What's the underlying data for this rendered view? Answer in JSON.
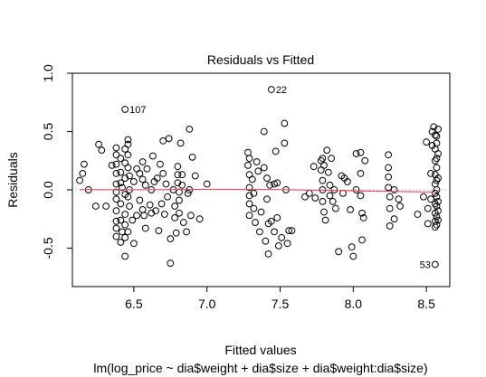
{
  "chart_data": {
    "type": "scatter",
    "title": "Residuals vs Fitted",
    "xlabel": "Fitted values",
    "subtitle": "lm(log_price ~ dia$weight + dia$size + dia$weight:dia$size)",
    "ylabel": "Residuals",
    "xlim": [
      6.08,
      8.66
    ],
    "ylim": [
      -0.83,
      1.0
    ],
    "x_ticks": [
      "6.5",
      "7.0",
      "7.5",
      "8.0",
      "8.5"
    ],
    "y_ticks": [
      "-0.5",
      "0.0",
      "0.5",
      "1.0"
    ],
    "grid": false,
    "reference_line": {
      "y": 0,
      "style": "dotted",
      "color": "#999999"
    },
    "smooth_line": {
      "color": "#df536b",
      "points": [
        [
          6.13,
          0.002
        ],
        [
          6.5,
          0.0
        ],
        [
          7.0,
          0.004
        ],
        [
          7.5,
          0.002
        ],
        [
          8.0,
          -0.008
        ],
        [
          8.57,
          -0.02
        ]
      ]
    },
    "annotations": [
      {
        "label": "107",
        "x": 6.44,
        "y": 0.69
      },
      {
        "label": "22",
        "x": 7.44,
        "y": 0.86
      },
      {
        "label": "53",
        "x": 8.56,
        "y": -0.64
      }
    ],
    "point_color": "#000000",
    "points": [
      [
        6.13,
        0.08
      ],
      [
        6.16,
        0.22
      ],
      [
        6.15,
        0.14
      ],
      [
        6.19,
        0.0
      ],
      [
        6.24,
        -0.14
      ],
      [
        6.26,
        0.39
      ],
      [
        6.28,
        0.34
      ],
      [
        6.31,
        -0.14
      ],
      [
        6.35,
        0.21
      ],
      [
        6.38,
        0.36
      ],
      [
        6.38,
        0.3
      ],
      [
        6.38,
        0.22
      ],
      [
        6.38,
        0.14
      ],
      [
        6.38,
        0.05
      ],
      [
        6.38,
        -0.02
      ],
      [
        6.38,
        -0.08
      ],
      [
        6.38,
        -0.18
      ],
      [
        6.38,
        -0.27
      ],
      [
        6.38,
        -0.33
      ],
      [
        6.38,
        -0.4
      ],
      [
        6.41,
        0.27
      ],
      [
        6.41,
        0.15
      ],
      [
        6.41,
        0.06
      ],
      [
        6.41,
        -0.12
      ],
      [
        6.41,
        -0.26
      ],
      [
        6.41,
        -0.45
      ],
      [
        6.42,
        0.02
      ],
      [
        6.42,
        -0.36
      ],
      [
        6.44,
        0.69
      ],
      [
        6.44,
        0.35
      ],
      [
        6.44,
        0.23
      ],
      [
        6.44,
        0.1
      ],
      [
        6.44,
        -0.04
      ],
      [
        6.44,
        -0.21
      ],
      [
        6.44,
        -0.3
      ],
      [
        6.44,
        -0.41
      ],
      [
        6.44,
        -0.57
      ],
      [
        6.46,
        0.43
      ],
      [
        6.46,
        0.39
      ],
      [
        6.46,
        0.3
      ],
      [
        6.46,
        0.19
      ],
      [
        6.46,
        -0.06
      ],
      [
        6.46,
        -0.36
      ],
      [
        6.47,
        0.12
      ],
      [
        6.47,
        0.0
      ],
      [
        6.47,
        -0.14
      ],
      [
        6.49,
        -0.26
      ],
      [
        6.5,
        -0.46
      ],
      [
        6.5,
        0.07
      ],
      [
        6.52,
        0.18
      ],
      [
        6.52,
        -0.22
      ],
      [
        6.54,
        0.14
      ],
      [
        6.54,
        -0.09
      ],
      [
        6.56,
        0.24
      ],
      [
        6.56,
        0.09
      ],
      [
        6.56,
        -0.17
      ],
      [
        6.57,
        -0.22
      ],
      [
        6.58,
        0.04
      ],
      [
        6.58,
        -0.33
      ],
      [
        6.59,
        0.18
      ],
      [
        6.61,
        -0.13
      ],
      [
        6.62,
        0.0
      ],
      [
        6.62,
        -0.2
      ],
      [
        6.63,
        0.29
      ],
      [
        6.64,
        0.07
      ],
      [
        6.65,
        -0.18
      ],
      [
        6.66,
        0.1
      ],
      [
        6.67,
        -0.35
      ],
      [
        6.68,
        0.22
      ],
      [
        6.69,
        -0.12
      ],
      [
        6.7,
        0.42
      ],
      [
        6.7,
        0.14
      ],
      [
        6.71,
        -0.21
      ],
      [
        6.72,
        0.05
      ],
      [
        6.73,
        -0.06
      ],
      [
        6.74,
        0.44
      ],
      [
        6.75,
        -0.63
      ],
      [
        6.75,
        -0.42
      ],
      [
        6.77,
        0.0
      ],
      [
        6.78,
        -0.14
      ],
      [
        6.78,
        -0.24
      ],
      [
        6.79,
        -0.37
      ],
      [
        6.8,
        0.2
      ],
      [
        6.8,
        0.13
      ],
      [
        6.8,
        0.06
      ],
      [
        6.81,
        -0.02
      ],
      [
        6.81,
        -0.09
      ],
      [
        6.81,
        -0.2
      ],
      [
        6.82,
        0.4
      ],
      [
        6.83,
        0.13
      ],
      [
        6.83,
        0.04
      ],
      [
        6.84,
        -0.28
      ],
      [
        6.86,
        -0.36
      ],
      [
        6.87,
        -0.03
      ],
      [
        6.88,
        0.52
      ],
      [
        6.88,
        0.0
      ],
      [
        6.89,
        -0.22
      ],
      [
        6.9,
        0.28
      ],
      [
        6.92,
        0.12
      ],
      [
        6.95,
        -0.25
      ],
      [
        7.0,
        0.05
      ],
      [
        7.28,
        0.32
      ],
      [
        7.28,
        0.21
      ],
      [
        7.29,
        0.13
      ],
      [
        7.29,
        0.02
      ],
      [
        7.29,
        -0.05
      ],
      [
        7.29,
        -0.12
      ],
      [
        7.29,
        -0.22
      ],
      [
        7.29,
        0.27
      ],
      [
        7.31,
        0.09
      ],
      [
        7.32,
        -0.03
      ],
      [
        7.32,
        -0.16
      ],
      [
        7.33,
        -0.28
      ],
      [
        7.34,
        0.24
      ],
      [
        7.35,
        0.16
      ],
      [
        7.36,
        -0.36
      ],
      [
        7.37,
        -0.19
      ],
      [
        7.39,
        0.5
      ],
      [
        7.39,
        0.19
      ],
      [
        7.4,
        -0.44
      ],
      [
        7.41,
        0.1
      ],
      [
        7.41,
        -0.08
      ],
      [
        7.42,
        -0.55
      ],
      [
        7.42,
        -0.29
      ],
      [
        7.43,
        0.04
      ],
      [
        7.44,
        0.86
      ],
      [
        7.44,
        -0.27
      ],
      [
        7.46,
        0.05
      ],
      [
        7.46,
        -0.36
      ],
      [
        7.47,
        0.33
      ],
      [
        7.48,
        0.06
      ],
      [
        7.48,
        -0.24
      ],
      [
        7.49,
        -0.48
      ],
      [
        7.51,
        -0.41
      ],
      [
        7.53,
        0.57
      ],
      [
        7.53,
        0.4
      ],
      [
        7.54,
        0.0
      ],
      [
        7.55,
        -0.46
      ],
      [
        7.56,
        -0.35
      ],
      [
        7.58,
        -0.35
      ],
      [
        7.67,
        -0.06
      ],
      [
        7.7,
        -0.03
      ],
      [
        7.73,
        0.2
      ],
      [
        7.74,
        -0.07
      ],
      [
        7.78,
        0.25
      ],
      [
        7.78,
        0.17
      ],
      [
        7.79,
        0.08
      ],
      [
        7.79,
        0.27
      ],
      [
        7.79,
        0.0
      ],
      [
        7.79,
        -0.1
      ],
      [
        7.8,
        0.21
      ],
      [
        7.8,
        -0.19
      ],
      [
        7.81,
        -0.26
      ],
      [
        7.82,
        0.34
      ],
      [
        7.83,
        0.15
      ],
      [
        7.84,
        0.04
      ],
      [
        7.84,
        -0.05
      ],
      [
        7.85,
        0.27
      ],
      [
        7.86,
        -0.1
      ],
      [
        7.87,
        0.0
      ],
      [
        7.88,
        -0.16
      ],
      [
        7.9,
        -0.53
      ],
      [
        7.92,
        0.12
      ],
      [
        7.93,
        -0.03
      ],
      [
        7.94,
        0.1
      ],
      [
        7.96,
        0.07
      ],
      [
        7.98,
        -0.17
      ],
      [
        7.99,
        -0.49
      ],
      [
        8.0,
        -0.57
      ],
      [
        8.02,
        0.31
      ],
      [
        8.02,
        0.0
      ],
      [
        8.05,
        0.32
      ],
      [
        8.05,
        0.14
      ],
      [
        8.05,
        -0.05
      ],
      [
        8.06,
        -0.2
      ],
      [
        8.06,
        -0.43
      ],
      [
        8.07,
        -0.24
      ],
      [
        8.08,
        0.25
      ],
      [
        8.24,
        0.3
      ],
      [
        8.24,
        0.19
      ],
      [
        8.24,
        0.11
      ],
      [
        8.24,
        0.02
      ],
      [
        8.25,
        -0.06
      ],
      [
        8.25,
        -0.16
      ],
      [
        8.25,
        -0.31
      ],
      [
        8.28,
        0.0
      ],
      [
        8.28,
        -0.25
      ],
      [
        8.31,
        -0.08
      ],
      [
        8.32,
        -0.14
      ],
      [
        8.44,
        -0.21
      ],
      [
        8.48,
        -0.06
      ],
      [
        8.5,
        0.41
      ],
      [
        8.51,
        -0.16
      ],
      [
        8.51,
        -0.29
      ],
      [
        8.53,
        0.14
      ],
      [
        8.53,
        -0.08
      ],
      [
        8.54,
        0.38
      ],
      [
        8.54,
        0.5
      ],
      [
        8.56,
        -0.64
      ],
      [
        8.55,
        0.54
      ],
      [
        8.56,
        0.47
      ],
      [
        8.56,
        0.35
      ],
      [
        8.56,
        0.25
      ],
      [
        8.56,
        0.13
      ],
      [
        8.56,
        0.05
      ],
      [
        8.56,
        -0.03
      ],
      [
        8.56,
        -0.12
      ],
      [
        8.56,
        -0.2
      ],
      [
        8.56,
        -0.27
      ],
      [
        8.56,
        -0.32
      ],
      [
        8.57,
        0.46
      ],
      [
        8.57,
        0.4
      ],
      [
        8.57,
        0.27
      ],
      [
        8.57,
        0.19
      ],
      [
        8.57,
        0.08
      ],
      [
        8.57,
        0.0
      ],
      [
        8.57,
        -0.06
      ],
      [
        8.57,
        -0.14
      ],
      [
        8.57,
        -0.23
      ],
      [
        8.57,
        -0.3
      ],
      [
        8.58,
        0.52
      ],
      [
        8.58,
        0.31
      ],
      [
        8.58,
        0.1
      ],
      [
        8.58,
        -0.1
      ],
      [
        8.58,
        -0.18
      ],
      [
        8.58,
        -0.26
      ]
    ]
  }
}
